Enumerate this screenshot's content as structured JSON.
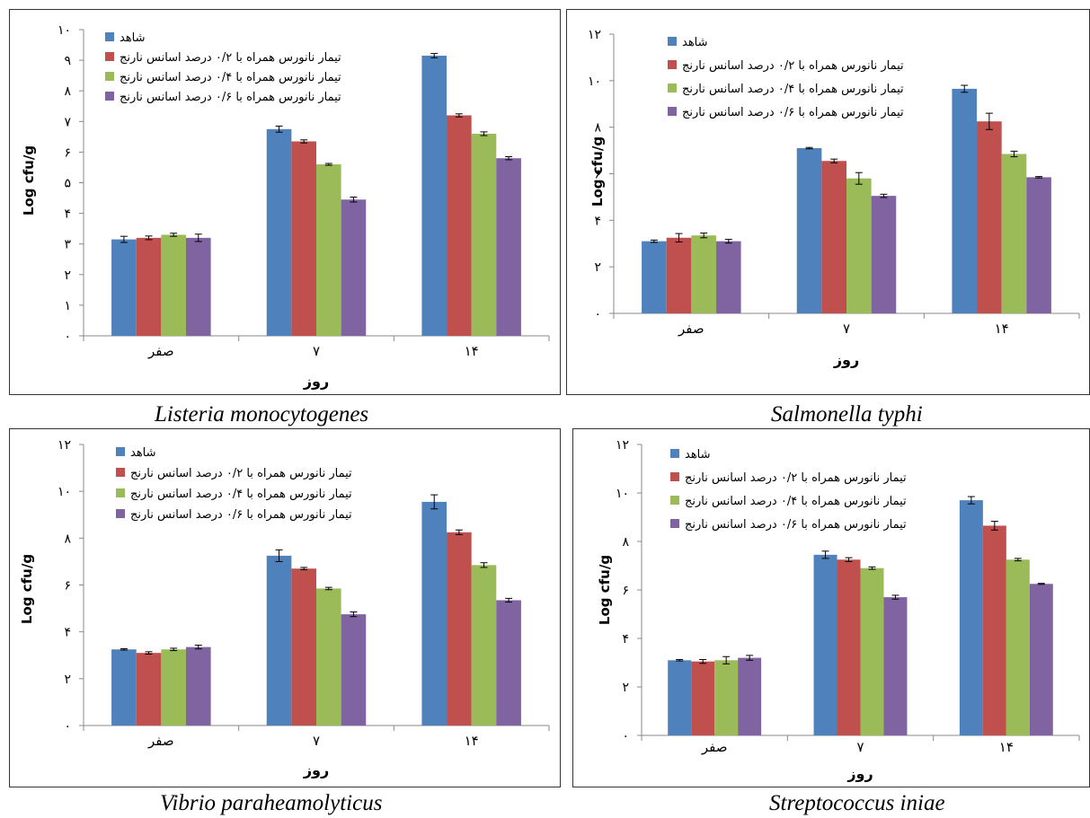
{
  "colors": {
    "control": "#4f81bd",
    "t02": "#c0504d",
    "t04": "#9bbb59",
    "t06": "#8064a2",
    "axis": "#888888",
    "text": "#000000"
  },
  "captions": [
    "Listeria monocytogenes",
    "Salmonella typhi",
    "Vibrio paraheamolyticus",
    "Streptococcus iniae"
  ],
  "chart_data": [
    {
      "type": "bar",
      "organism": "Listeria monocytogenes",
      "categories": [
        "صفر",
        "۷",
        "۱۴"
      ],
      "xlabel": "روز",
      "ylabel": "Log cfu/g",
      "ylim": [
        0,
        10
      ],
      "yticks": [
        0,
        1,
        2,
        3,
        4,
        5,
        6,
        7,
        8,
        9,
        10
      ],
      "ytick_labels": [
        "۰",
        "۱",
        "۲",
        "۳",
        "۴",
        "۵",
        "۶",
        "۷",
        "۸",
        "۹",
        "۱۰"
      ],
      "legend": "top-left",
      "grid": false,
      "series": [
        {
          "name": "شاهد",
          "values": [
            3.15,
            6.75,
            9.15
          ],
          "errors": [
            0.1,
            0.1,
            0.07
          ]
        },
        {
          "name": "تیمار نانورس همراه با ۰/۲ درصد اسانس نارنج",
          "values": [
            3.2,
            6.35,
            7.2
          ],
          "errors": [
            0.06,
            0.05,
            0.05
          ]
        },
        {
          "name": "تیمار نانورس همراه با ۰/۴ درصد اسانس نارنج",
          "values": [
            3.3,
            5.6,
            6.6
          ],
          "errors": [
            0.05,
            0.03,
            0.06
          ]
        },
        {
          "name": "تیمار نانورس همراه با ۰/۶ درصد اسانس نارنج",
          "values": [
            3.2,
            4.45,
            5.8
          ],
          "errors": [
            0.12,
            0.08,
            0.05
          ]
        }
      ]
    },
    {
      "type": "bar",
      "organism": "Salmonella typhi",
      "categories": [
        "صفر",
        "۷",
        "۱۴"
      ],
      "xlabel": "روز",
      "ylabel": "Log cfu/g",
      "ylim": [
        0,
        12
      ],
      "yticks": [
        0,
        2,
        4,
        6,
        8,
        10,
        12
      ],
      "ytick_labels": [
        "۰",
        "۲",
        "۴",
        "۶",
        "۸",
        "۱۰",
        "۱۲"
      ],
      "legend": "top-left",
      "grid": false,
      "series": [
        {
          "name": "شاهد",
          "values": [
            3.1,
            7.1,
            9.65
          ],
          "errors": [
            0.05,
            0.03,
            0.15
          ]
        },
        {
          "name": "تیمار نانورس همراه با ۰/۲ درصد اسانس نارنج",
          "values": [
            3.25,
            6.55,
            8.25
          ],
          "errors": [
            0.18,
            0.08,
            0.35
          ]
        },
        {
          "name": "تیمار نانورس همراه با ۰/۴ درصد اسانس نارنج",
          "values": [
            3.35,
            5.8,
            6.85
          ],
          "errors": [
            0.1,
            0.25,
            0.12
          ]
        },
        {
          "name": "تیمار نانورس همراه با ۰/۶ درصد اسانس نارنج",
          "values": [
            3.1,
            5.05,
            5.85
          ],
          "errors": [
            0.08,
            0.07,
            0.03
          ]
        }
      ]
    },
    {
      "type": "bar",
      "organism": "Vibrio paraheamolyticus",
      "categories": [
        "صفر",
        "۷",
        "۱۴"
      ],
      "xlabel": "روز",
      "ylabel": "Log cfu/g",
      "ylim": [
        0,
        12
      ],
      "yticks": [
        0,
        2,
        4,
        6,
        8,
        10,
        12
      ],
      "ytick_labels": [
        "۰",
        "۲",
        "۴",
        "۶",
        "۸",
        "۱۰",
        "۱۲"
      ],
      "legend": "top-left",
      "grid": false,
      "series": [
        {
          "name": "شاهد",
          "values": [
            3.25,
            7.25,
            9.55
          ],
          "errors": [
            0.03,
            0.25,
            0.3
          ]
        },
        {
          "name": "تیمار نانورس همراه با ۰/۲ درصد اسانس نارنج",
          "values": [
            3.1,
            6.7,
            8.25
          ],
          "errors": [
            0.05,
            0.05,
            0.1
          ]
        },
        {
          "name": "تیمار نانورس همراه با ۰/۴ درصد اسانس نارنج",
          "values": [
            3.25,
            5.85,
            6.85
          ],
          "errors": [
            0.05,
            0.05,
            0.1
          ]
        },
        {
          "name": "تیمار نانورس همراه با ۰/۶ درصد اسانس نارنج",
          "values": [
            3.35,
            4.75,
            5.35
          ],
          "errors": [
            0.08,
            0.1,
            0.08
          ]
        }
      ]
    },
    {
      "type": "bar",
      "organism": "Streptococcus iniae",
      "categories": [
        "صفر",
        "۷",
        "۱۴"
      ],
      "xlabel": "روز",
      "ylabel": "Log cfu/g",
      "ylim": [
        0,
        12
      ],
      "yticks": [
        0,
        2,
        4,
        6,
        8,
        10,
        12
      ],
      "ytick_labels": [
        "۰",
        "۲",
        "۴",
        "۶",
        "۸",
        "۱۰",
        "۱۲"
      ],
      "legend": "top-left",
      "grid": false,
      "series": [
        {
          "name": "شاهد",
          "values": [
            3.1,
            7.45,
            9.7
          ],
          "errors": [
            0.03,
            0.15,
            0.15
          ]
        },
        {
          "name": "تیمار نانورس همراه با ۰/۲ درصد اسانس نارنج",
          "values": [
            3.05,
            7.25,
            8.65
          ],
          "errors": [
            0.08,
            0.08,
            0.18
          ]
        },
        {
          "name": "تیمار نانورس همراه با ۰/۴ درصد اسانس نارنج",
          "values": [
            3.1,
            6.9,
            7.25
          ],
          "errors": [
            0.15,
            0.05,
            0.05
          ]
        },
        {
          "name": "تیمار نانورس همراه با ۰/۶ درصد اسانس نارنج",
          "values": [
            3.2,
            5.7,
            6.25
          ],
          "errors": [
            0.1,
            0.08,
            0.02
          ]
        }
      ]
    }
  ]
}
